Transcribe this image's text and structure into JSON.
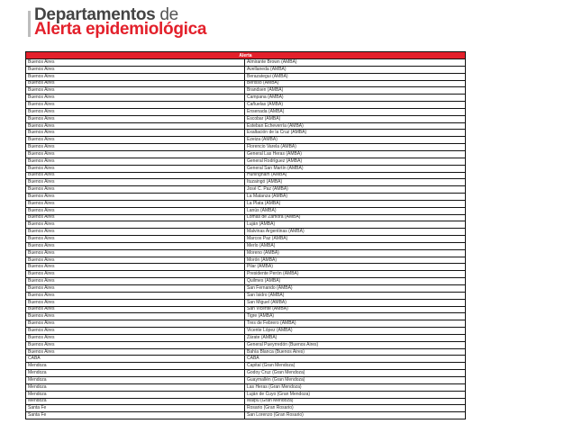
{
  "title": {
    "line1_bold": "Departamentos",
    "line1_light": "de",
    "line2": "Alerta epidemiológica"
  },
  "colors": {
    "accent": "#e3202b",
    "title_gray": "#444444"
  },
  "table": {
    "header": "Alerta",
    "rows": [
      [
        "Buenos Aires",
        "Almirante Brown (AMBA)"
      ],
      [
        "Buenos Aires",
        "Avellaneda (AMBA)"
      ],
      [
        "Buenos Aires",
        "Berazategui (AMBA)"
      ],
      [
        "Buenos Aires",
        "Berisso (AMBA)"
      ],
      [
        "Buenos Aires",
        "Brandsen (AMBA)"
      ],
      [
        "Buenos Aires",
        "Campana (AMBA)"
      ],
      [
        "Buenos Aires",
        "Cañuelas (AMBA)"
      ],
      [
        "Buenos Aires",
        "Ensenada (AMBA)"
      ],
      [
        "Buenos Aires",
        "Escobar (AMBA)"
      ],
      [
        "Buenos Aires",
        "Esteban Echeverría (AMBA)"
      ],
      [
        "Buenos Aires",
        "Exaltación de la Cruz (AMBA)"
      ],
      [
        "Buenos Aires",
        "Ezeiza (AMBA)"
      ],
      [
        "Buenos Aires",
        "Florencio Varela (AMBA)"
      ],
      [
        "Buenos Aires",
        "General Las Heras (AMBA)"
      ],
      [
        "Buenos Aires",
        "General Rodríguez (AMBA)"
      ],
      [
        "Buenos Aires",
        "General San Martín (AMBA)"
      ],
      [
        "Buenos Aires",
        "Hurlingham (AMBA)"
      ],
      [
        "Buenos Aires",
        "Ituzaingó (AMBA)"
      ],
      [
        "Buenos Aires",
        "José C. Paz (AMBA)"
      ],
      [
        "Buenos Aires",
        "La Matanza (AMBA)"
      ],
      [
        "Buenos Aires",
        "La Plata (AMBA)"
      ],
      [
        "Buenos Aires",
        "Lanús (AMBA)"
      ],
      [
        "Buenos Aires",
        "Lomas de Zamora (AMBA)"
      ],
      [
        "Buenos Aires",
        "Luján (AMBA)"
      ],
      [
        "Buenos Aires",
        "Malvinas Argentinas (AMBA)"
      ],
      [
        "Buenos Aires",
        "Marcos Paz (AMBA)"
      ],
      [
        "Buenos Aires",
        "Merlo (AMBA)"
      ],
      [
        "Buenos Aires",
        "Moreno (AMBA)"
      ],
      [
        "Buenos Aires",
        "Morón (AMBA)"
      ],
      [
        "Buenos Aires",
        "Pilar (AMBA)"
      ],
      [
        "Buenos Aires",
        "Presidente Perón (AMBA)"
      ],
      [
        "Buenos Aires",
        "Quilmes (AMBA)"
      ],
      [
        "Buenos Aires",
        "San Fernando (AMBA)"
      ],
      [
        "Buenos Aires",
        "San Isidro (AMBA)"
      ],
      [
        "Buenos Aires",
        "San Miguel (AMBA)"
      ],
      [
        "Buenos Aires",
        "San Vicente (AMBA)"
      ],
      [
        "Buenos Aires",
        "Tigre (AMBA)"
      ],
      [
        "Buenos Aires",
        "Tres de Febrero (AMBA)"
      ],
      [
        "Buenos Aires",
        "Vicente López (AMBA)"
      ],
      [
        "Buenos Aires",
        "Zárate (AMBA)"
      ],
      [
        "Buenos Aires",
        "General Pueyrredón (Buenos Aires)"
      ],
      [
        "Buenos Aires",
        "Bahía Blanca (Buenos Aires)"
      ],
      [
        "CABA",
        "CABA"
      ],
      [
        "Mendoza",
        "Capital (Gran Mendoza)"
      ],
      [
        "Mendoza",
        "Godoy Cruz (Gran Mendoza)"
      ],
      [
        "Mendoza",
        "Guaymallén (Gran Mendoza)"
      ],
      [
        "Mendoza",
        "Las Heras (Gran Mendoza)"
      ],
      [
        "Mendoza",
        "Luján de Cuyo (Gran Mendoza)"
      ],
      [
        "Mendoza",
        "Maipú (Gran Mendoza)"
      ],
      [
        "Santa Fe",
        "Rosario (Gran Rosario)"
      ],
      [
        "Santa Fe",
        "San Lorenzo (Gran Rosario)"
      ]
    ]
  }
}
